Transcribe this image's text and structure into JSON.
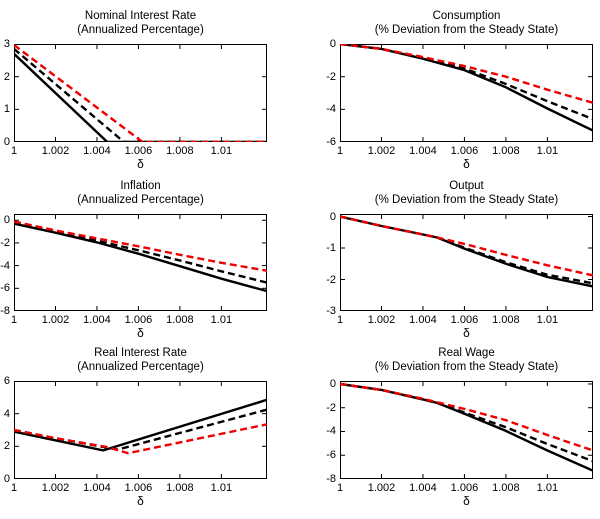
{
  "figure": {
    "background": "#ffffff",
    "axis_color": "#000000",
    "xlabel": "δ",
    "xlim": [
      1,
      1.0122
    ],
    "x_ticks": [
      1,
      1.002,
      1.004,
      1.006,
      1.008,
      1.01
    ],
    "x_tick_labels": [
      "1",
      "1.002",
      "1.004",
      "1.006",
      "1.008",
      "1.01"
    ],
    "grid": false,
    "legend": "none",
    "line_width": 2.4,
    "dash_pattern": "7 4",
    "colors": {
      "black": "#000000",
      "red": "#ec0000"
    }
  },
  "chart_data": [
    {
      "type": "line",
      "title": "Nominal Interest Rate",
      "subtitle": "(Annualized Percentage)",
      "xlabel": "δ",
      "xlim": [
        1,
        1.0122
      ],
      "ylim": [
        0,
        3
      ],
      "yticks": [
        3,
        2,
        1,
        0
      ],
      "series": [
        {
          "name": "solid-black",
          "line": "solid",
          "color": "black",
          "points": [
            [
              1,
              2.7
            ],
            [
              1.0045,
              0
            ],
            [
              1.0122,
              0
            ]
          ]
        },
        {
          "name": "dashed-black",
          "line": "dashed",
          "color": "black",
          "points": [
            [
              1,
              2.85
            ],
            [
              1.0053,
              0
            ],
            [
              1.0122,
              0
            ]
          ]
        },
        {
          "name": "dashed-red",
          "line": "dashed",
          "color": "red",
          "points": [
            [
              1,
              2.97
            ],
            [
              1.0062,
              0
            ],
            [
              1.0122,
              0
            ]
          ]
        }
      ]
    },
    {
      "type": "line",
      "title": "Consumption",
      "subtitle": "(% Deviation from the Steady State)",
      "xlabel": "δ",
      "xlim": [
        1,
        1.0122
      ],
      "ylim": [
        -6,
        0
      ],
      "yticks": [
        0,
        -2,
        -4,
        -6
      ],
      "series": [
        {
          "name": "solid-black",
          "line": "solid",
          "color": "black",
          "points": [
            [
              1,
              0
            ],
            [
              1.002,
              -0.3
            ],
            [
              1.004,
              -0.9
            ],
            [
              1.006,
              -1.6
            ],
            [
              1.008,
              -2.65
            ],
            [
              1.01,
              -3.95
            ],
            [
              1.0122,
              -5.3
            ]
          ]
        },
        {
          "name": "dashed-black",
          "line": "dashed",
          "color": "black",
          "points": [
            [
              1,
              0
            ],
            [
              1.002,
              -0.3
            ],
            [
              1.004,
              -0.85
            ],
            [
              1.006,
              -1.5
            ],
            [
              1.008,
              -2.45
            ],
            [
              1.01,
              -3.5
            ],
            [
              1.0122,
              -4.6
            ]
          ]
        },
        {
          "name": "dashed-red",
          "line": "dashed",
          "color": "red",
          "points": [
            [
              1,
              0
            ],
            [
              1.002,
              -0.3
            ],
            [
              1.004,
              -0.8
            ],
            [
              1.006,
              -1.35
            ],
            [
              1.008,
              -2.0
            ],
            [
              1.01,
              -2.8
            ],
            [
              1.0122,
              -3.6
            ]
          ]
        }
      ]
    },
    {
      "type": "line",
      "title": "Inflation",
      "subtitle": "(Annualized Percentage)",
      "xlabel": "δ",
      "xlim": [
        1,
        1.0122
      ],
      "ylim": [
        -8,
        0.55
      ],
      "yticks": [
        0,
        -2,
        -4,
        -6,
        -8
      ],
      "series": [
        {
          "name": "solid-black",
          "line": "solid",
          "color": "black",
          "points": [
            [
              1,
              -0.3
            ],
            [
              1.002,
              -1.1
            ],
            [
              1.004,
              -1.95
            ],
            [
              1.006,
              -2.95
            ],
            [
              1.008,
              -4.05
            ],
            [
              1.01,
              -5.15
            ],
            [
              1.0122,
              -6.25
            ]
          ]
        },
        {
          "name": "dashed-black",
          "line": "dashed",
          "color": "black",
          "points": [
            [
              1,
              -0.15
            ],
            [
              1.002,
              -0.95
            ],
            [
              1.004,
              -1.8
            ],
            [
              1.006,
              -2.65
            ],
            [
              1.008,
              -3.55
            ],
            [
              1.01,
              -4.5
            ],
            [
              1.0122,
              -5.5
            ]
          ]
        },
        {
          "name": "dashed-red",
          "line": "dashed",
          "color": "red",
          "points": [
            [
              1,
              -0.1
            ],
            [
              1.002,
              -0.9
            ],
            [
              1.004,
              -1.6
            ],
            [
              1.006,
              -2.3
            ],
            [
              1.008,
              -3.05
            ],
            [
              1.01,
              -3.75
            ],
            [
              1.0122,
              -4.45
            ]
          ]
        }
      ]
    },
    {
      "type": "line",
      "title": "Output",
      "subtitle": "(% Deviation from the Steady State)",
      "xlabel": "δ",
      "xlim": [
        1,
        1.0122
      ],
      "ylim": [
        -3,
        0.08
      ],
      "yticks": [
        0,
        -1,
        -2,
        -3
      ],
      "series": [
        {
          "name": "solid-black",
          "line": "solid",
          "color": "black",
          "points": [
            [
              1,
              0
            ],
            [
              1.002,
              -0.3
            ],
            [
              1.004,
              -0.57
            ],
            [
              1.0047,
              -0.67
            ],
            [
              1.006,
              -1.02
            ],
            [
              1.008,
              -1.5
            ],
            [
              1.01,
              -1.92
            ],
            [
              1.0122,
              -2.22
            ]
          ]
        },
        {
          "name": "dashed-black",
          "line": "dashed",
          "color": "black",
          "points": [
            [
              1,
              0
            ],
            [
              1.002,
              -0.3
            ],
            [
              1.004,
              -0.57
            ],
            [
              1.0047,
              -0.67
            ],
            [
              1.006,
              -0.99
            ],
            [
              1.008,
              -1.45
            ],
            [
              1.01,
              -1.85
            ],
            [
              1.0122,
              -2.12
            ]
          ]
        },
        {
          "name": "dashed-red",
          "line": "dashed",
          "color": "red",
          "points": [
            [
              1,
              0
            ],
            [
              1.002,
              -0.3
            ],
            [
              1.004,
              -0.57
            ],
            [
              1.0047,
              -0.67
            ],
            [
              1.006,
              -0.87
            ],
            [
              1.008,
              -1.22
            ],
            [
              1.01,
              -1.55
            ],
            [
              1.0122,
              -1.87
            ]
          ]
        }
      ]
    },
    {
      "type": "line",
      "title": "Real Interest Rate",
      "subtitle": "(Annualized Percentage)",
      "xlabel": "δ",
      "xlim": [
        1,
        1.0122
      ],
      "ylim": [
        0,
        6
      ],
      "yticks": [
        6,
        4,
        2,
        0
      ],
      "series": [
        {
          "name": "solid-black",
          "line": "solid",
          "color": "black",
          "points": [
            [
              1,
              2.9
            ],
            [
              1.0043,
              1.75
            ],
            [
              1.0122,
              4.85
            ]
          ]
        },
        {
          "name": "dashed-black",
          "line": "dashed",
          "color": "black",
          "points": [
            [
              1,
              3.0
            ],
            [
              1.002,
              2.5
            ],
            [
              1.005,
              1.8
            ],
            [
              1.0122,
              4.25
            ]
          ]
        },
        {
          "name": "dashed-red",
          "line": "dashed",
          "color": "red",
          "points": [
            [
              1,
              3.0
            ],
            [
              1.002,
              2.5
            ],
            [
              1.0045,
              1.95
            ],
            [
              1.0055,
              1.58
            ],
            [
              1.0122,
              3.35
            ]
          ]
        }
      ]
    },
    {
      "type": "line",
      "title": "Real Wage",
      "subtitle": "(% Deviation from the Steady State)",
      "xlabel": "δ",
      "xlim": [
        1,
        1.0122
      ],
      "ylim": [
        -8,
        0.25
      ],
      "yticks": [
        0,
        -2,
        -4,
        -6,
        -8
      ],
      "series": [
        {
          "name": "solid-black",
          "line": "solid",
          "color": "black",
          "points": [
            [
              1,
              0
            ],
            [
              1.002,
              -0.5
            ],
            [
              1.004,
              -1.3
            ],
            [
              1.0047,
              -1.6
            ],
            [
              1.006,
              -2.5
            ],
            [
              1.008,
              -3.95
            ],
            [
              1.01,
              -5.6
            ],
            [
              1.0122,
              -7.3
            ]
          ]
        },
        {
          "name": "dashed-black",
          "line": "dashed",
          "color": "black",
          "points": [
            [
              1,
              0
            ],
            [
              1.002,
              -0.5
            ],
            [
              1.004,
              -1.3
            ],
            [
              1.0047,
              -1.6
            ],
            [
              1.006,
              -2.4
            ],
            [
              1.008,
              -3.65
            ],
            [
              1.01,
              -5.05
            ],
            [
              1.0122,
              -6.5
            ]
          ]
        },
        {
          "name": "dashed-red",
          "line": "dashed",
          "color": "red",
          "points": [
            [
              1,
              0
            ],
            [
              1.002,
              -0.5
            ],
            [
              1.004,
              -1.25
            ],
            [
              1.006,
              -2.1
            ],
            [
              1.008,
              -3.05
            ],
            [
              1.01,
              -4.3
            ],
            [
              1.0122,
              -5.6
            ]
          ]
        }
      ]
    }
  ]
}
